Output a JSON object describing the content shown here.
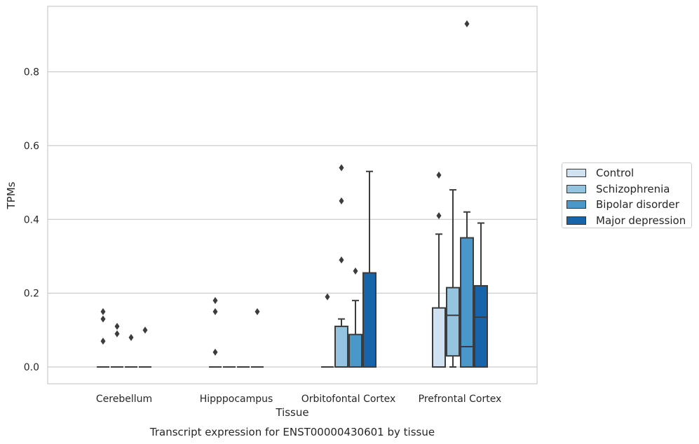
{
  "chart_data": {
    "type": "boxplot",
    "title": "Transcript expression for ENST00000430601 by tissue",
    "xlabel": "Tissue",
    "ylabel": "TPMs",
    "ylim": [
      -0.045,
      0.975
    ],
    "yticks": [
      "0.0",
      "0.2",
      "0.4",
      "0.6",
      "0.8"
    ],
    "grid": "horizontal",
    "legend_position": "right",
    "categories": [
      "Cerebellum",
      "Hipppocampus",
      "Orbitofontal Cortex",
      "Prefrontal Cortex"
    ],
    "series": [
      {
        "name": "Control",
        "color": "#d0e1f2",
        "boxes": [
          {
            "q1": 0,
            "median": 0,
            "q3": 0,
            "whislo": 0,
            "whishi": 0,
            "fliers": [
              0.15,
              0.13,
              0.07
            ]
          },
          {
            "q1": 0,
            "median": 0,
            "q3": 0,
            "whislo": 0,
            "whishi": 0,
            "fliers": [
              0.18,
              0.15,
              0.04
            ]
          },
          {
            "q1": 0,
            "median": 0,
            "q3": 0,
            "whislo": 0,
            "whishi": 0,
            "fliers": [
              0.19
            ]
          },
          {
            "q1": 0,
            "median": 0,
            "q3": 0.16,
            "whislo": 0,
            "whishi": 0.36,
            "fliers": [
              0.52,
              0.41
            ]
          }
        ]
      },
      {
        "name": "Schizophrenia",
        "color": "#94c4df",
        "boxes": [
          {
            "q1": 0,
            "median": 0,
            "q3": 0,
            "whislo": 0,
            "whishi": 0,
            "fliers": [
              0.11,
              0.09
            ]
          },
          {
            "q1": 0,
            "median": 0,
            "q3": 0,
            "whislo": 0,
            "whishi": 0,
            "fliers": []
          },
          {
            "q1": 0,
            "median": 0,
            "q3": 0.11,
            "whislo": 0,
            "whishi": 0.13,
            "fliers": [
              0.54,
              0.45,
              0.29
            ]
          },
          {
            "q1": 0.03,
            "median": 0.14,
            "q3": 0.215,
            "whislo": 0,
            "whishi": 0.48,
            "fliers": []
          }
        ]
      },
      {
        "name": "Bipolar disorder",
        "color": "#4a98c9",
        "boxes": [
          {
            "q1": 0,
            "median": 0,
            "q3": 0,
            "whislo": 0,
            "whishi": 0,
            "fliers": [
              0.08
            ]
          },
          {
            "q1": 0,
            "median": 0,
            "q3": 0,
            "whislo": 0,
            "whishi": 0,
            "fliers": []
          },
          {
            "q1": 0,
            "median": 0,
            "q3": 0.088,
            "whislo": 0,
            "whishi": 0.18,
            "fliers": [
              0.26
            ]
          },
          {
            "q1": 0,
            "median": 0.055,
            "q3": 0.35,
            "whislo": 0,
            "whishi": 0.42,
            "fliers": [
              0.93
            ]
          }
        ]
      },
      {
        "name": "Major depression",
        "color": "#1764ab",
        "boxes": [
          {
            "q1": 0,
            "median": 0,
            "q3": 0,
            "whislo": 0,
            "whishi": 0,
            "fliers": [
              0.1
            ]
          },
          {
            "q1": 0,
            "median": 0,
            "q3": 0,
            "whislo": 0,
            "whishi": 0,
            "fliers": [
              0.15
            ]
          },
          {
            "q1": 0,
            "median": 0,
            "q3": 0.255,
            "whislo": 0,
            "whishi": 0.53,
            "fliers": []
          },
          {
            "q1": 0,
            "median": 0.135,
            "q3": 0.22,
            "whislo": 0,
            "whishi": 0.39,
            "fliers": []
          }
        ]
      }
    ]
  }
}
